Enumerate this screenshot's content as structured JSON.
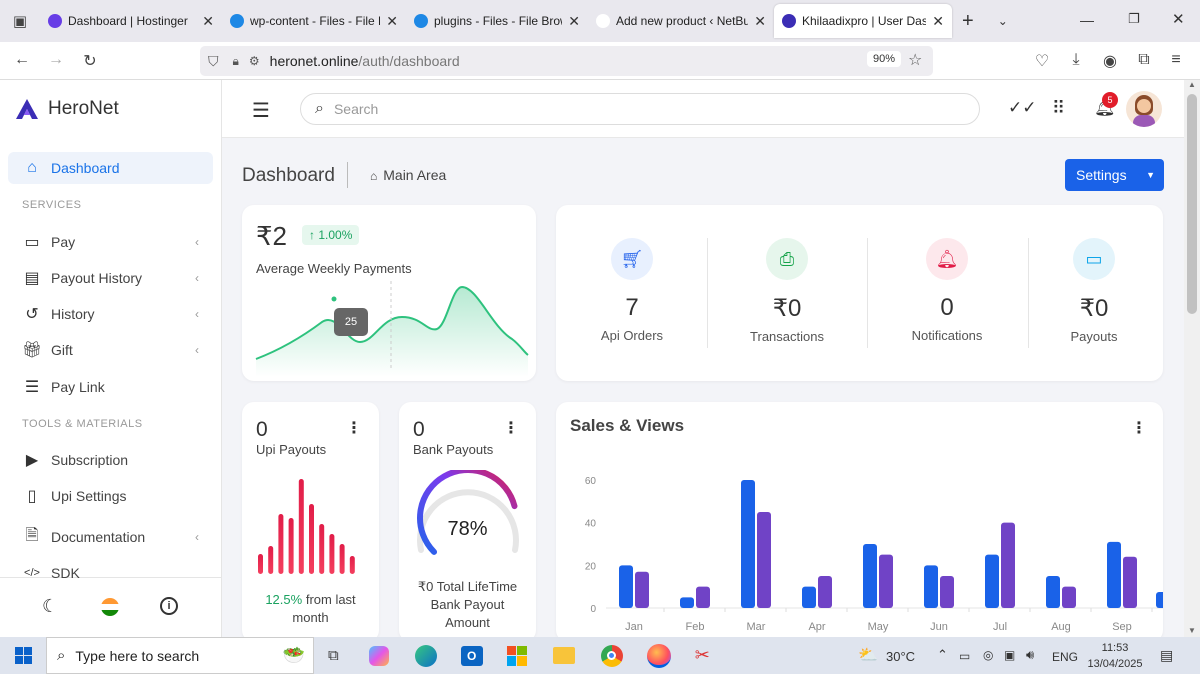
{
  "browser": {
    "tabs": [
      {
        "title": "Dashboard | Hostinger",
        "color": "#673de6"
      },
      {
        "title": "wp-content - Files - File Bro",
        "color": "#1e88e5"
      },
      {
        "title": "plugins - Files - File Browse",
        "color": "#1e88e5"
      },
      {
        "title": "Add new product ‹ NetBuzz —",
        "color": "#ffffff"
      },
      {
        "title": "Khilaadixpro | User Dashbo",
        "color": "#3b2db5"
      }
    ],
    "url_host": "heronet.online",
    "url_path": "/auth/dashboard",
    "zoom": "90%"
  },
  "sidebar": {
    "brand": "HeroNet",
    "active_item": "Dashboard",
    "services_heading": "SERVICES",
    "services": [
      {
        "label": "Pay",
        "icon": "card-icon"
      },
      {
        "label": "Payout History",
        "icon": "archive-icon"
      },
      {
        "label": "History",
        "icon": "history-icon"
      },
      {
        "label": "Gift",
        "icon": "gift-icon"
      },
      {
        "label": "Pay Link",
        "icon": "list-icon"
      }
    ],
    "tools_heading": "TOOLS & MATERIALS",
    "tools": [
      {
        "label": "Subscription",
        "icon": "play-box-icon"
      },
      {
        "label": "Upi Settings",
        "icon": "phone-icon"
      },
      {
        "label": "Documentation",
        "icon": "document-icon"
      },
      {
        "label": "SDK",
        "icon": "code-icon"
      }
    ]
  },
  "topbar": {
    "search_placeholder": "Search",
    "notification_count": "5"
  },
  "page": {
    "title": "Dashboard",
    "breadcrumb": "Main Area",
    "settings_button": "Settings"
  },
  "weekly": {
    "amount": "₹2",
    "change": "1.00%",
    "label": "Average Weekly Payments",
    "tooltip": "25"
  },
  "stats": [
    {
      "value": "7",
      "label": "Api Orders",
      "color": "#2563eb",
      "bg": "#e8f0fe"
    },
    {
      "value": "₹0",
      "label": "Transactions",
      "color": "#16a34a",
      "bg": "#e6f6ec"
    },
    {
      "value": "0",
      "label": "Notifications",
      "color": "#e11d48",
      "bg": "#fde8ec"
    },
    {
      "value": "₹0",
      "label": "Payouts",
      "color": "#0ea5e9",
      "bg": "#e3f4fb"
    }
  ],
  "upi": {
    "value": "0",
    "label": "Upi Payouts",
    "change": "12.5%",
    "change_suffix": "from last month"
  },
  "bank": {
    "value": "0",
    "label": "Bank Payouts",
    "percent": "78%",
    "footer": "₹0 Total LifeTime Bank Payout Amount"
  },
  "chart_data": {
    "type": "bar",
    "title": "Sales & Views",
    "categories": [
      "Jan",
      "Feb",
      "Mar",
      "Apr",
      "May",
      "Jun",
      "Jul",
      "Aug",
      "Sep"
    ],
    "ylim": [
      0,
      60
    ],
    "yticks": [
      "0",
      "20",
      "40",
      "60"
    ],
    "series": [
      {
        "values": [
          20,
          5,
          60,
          10,
          30,
          20,
          25,
          15,
          31
        ],
        "color": "#1a62e8"
      },
      {
        "values": [
          17,
          10,
          45,
          15,
          25,
          15,
          40,
          10,
          24
        ],
        "color": "#7043c6"
      }
    ]
  },
  "taskbar": {
    "search_placeholder": "Type here to search",
    "weather": "30°C",
    "lang": "ENG",
    "time": "11:53",
    "date": "13/04/2025"
  }
}
